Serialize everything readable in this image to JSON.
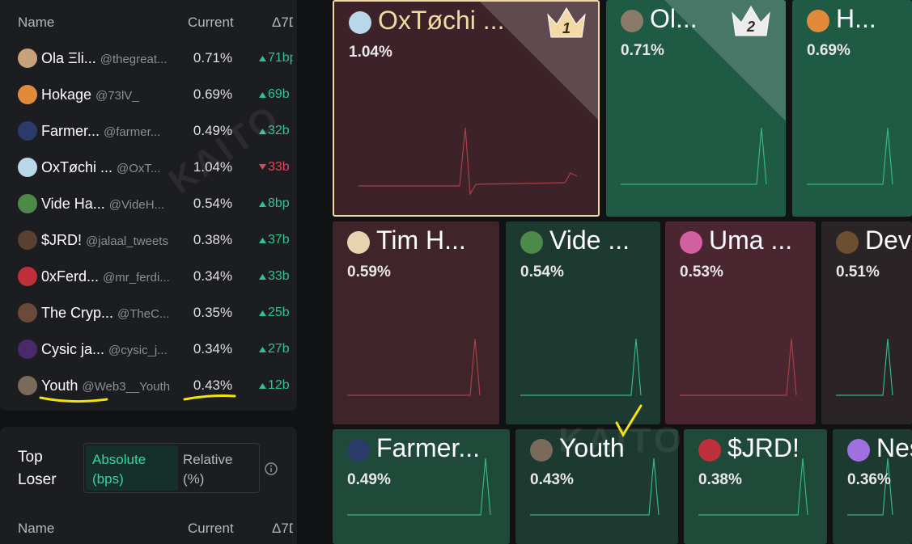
{
  "leaderboard": {
    "columns": [
      "Name",
      "Current",
      "Δ7D"
    ],
    "rows": [
      {
        "name": "Ola Ξli...",
        "handle": "@thegreat...",
        "current": "0.71%",
        "delta": "71bp",
        "trend": "up"
      },
      {
        "name": "Hokage",
        "handle": "@73lV_",
        "current": "0.69%",
        "delta": "69b",
        "trend": "up"
      },
      {
        "name": "Farmer...",
        "handle": "@farmer...",
        "current": "0.49%",
        "delta": "32b",
        "trend": "up"
      },
      {
        "name": "OxTøchi ...",
        "handle": "@OxT...",
        "current": "1.04%",
        "delta": "33b",
        "trend": "down"
      },
      {
        "name": "Vide Ha...",
        "handle": "@VideH...",
        "current": "0.54%",
        "delta": "8bp",
        "trend": "up"
      },
      {
        "name": "$JRD!",
        "handle": "@jalaal_tweets",
        "current": "0.38%",
        "delta": "37b",
        "trend": "up"
      },
      {
        "name": "0xFerd...",
        "handle": "@mr_ferdi...",
        "current": "0.34%",
        "delta": "33b",
        "trend": "up"
      },
      {
        "name": "The Cryp...",
        "handle": "@TheC...",
        "current": "0.35%",
        "delta": "25b",
        "trend": "up"
      },
      {
        "name": "Cysic ja...",
        "handle": "@cysic_j...",
        "current": "0.34%",
        "delta": "27b",
        "trend": "up"
      },
      {
        "name": "Youth",
        "handle": "@Web3__Youth",
        "current": "0.43%",
        "delta": "12b",
        "trend": "up"
      }
    ]
  },
  "top_loser": {
    "title": "Top Loser",
    "toggle": [
      "Absolute (bps)",
      "Relative (%)"
    ],
    "columns": [
      "Name",
      "Current",
      "Δ7D"
    ]
  },
  "treemap": {
    "tiles": [
      {
        "name": "OxTøchi ...",
        "share": "1.04%",
        "rank": "1"
      },
      {
        "name": "Ol...",
        "share": "0.71%",
        "rank": "2"
      },
      {
        "name": "H...",
        "share": "0.69%"
      },
      {
        "name": "Tim H...",
        "share": "0.59%"
      },
      {
        "name": "Vide ...",
        "share": "0.54%"
      },
      {
        "name": "Uma ...",
        "share": "0.53%"
      },
      {
        "name": "Dev",
        "share": "0.51%"
      },
      {
        "name": "Farmer...",
        "share": "0.49%"
      },
      {
        "name": "Youth",
        "share": "0.43%"
      },
      {
        "name": "$JRD!",
        "share": "0.38%"
      },
      {
        "name": "Nes",
        "share": "0.36%"
      }
    ]
  },
  "watermark": "KAITO"
}
